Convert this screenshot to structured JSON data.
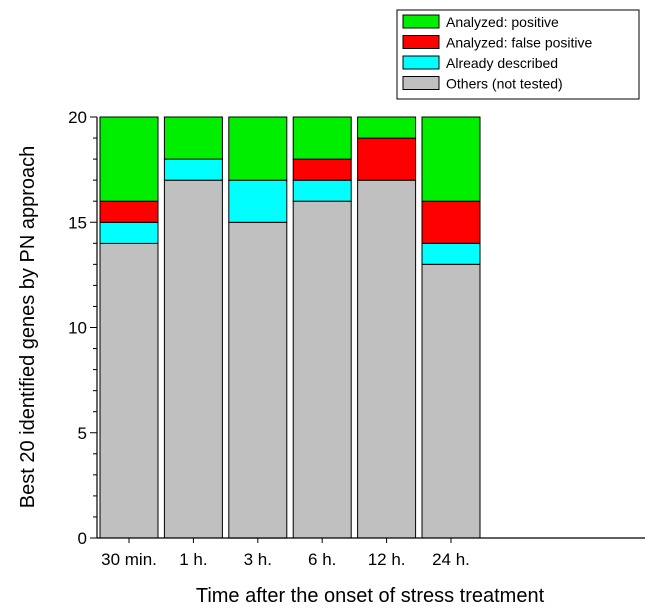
{
  "chart_data": {
    "type": "bar",
    "stacked": true,
    "categories": [
      "30 min.",
      "1 h.",
      "3 h.",
      "6 h.",
      "12 h.",
      "24 h."
    ],
    "series": [
      {
        "name": "Others (not tested)",
        "color": "#c0c0c0",
        "values": [
          14,
          17,
          15,
          16,
          17,
          13
        ]
      },
      {
        "name": "Already described",
        "color": "#00ffff",
        "values": [
          1,
          1,
          2,
          1,
          0,
          1
        ]
      },
      {
        "name": "Analyzed: false positive",
        "color": "#ff0000",
        "values": [
          1,
          0,
          0,
          1,
          2,
          2
        ]
      },
      {
        "name": "Analyzed: positive",
        "color": "#00ee00",
        "values": [
          4,
          2,
          3,
          2,
          1,
          4
        ]
      }
    ],
    "legend_order": [
      "Analyzed: positive",
      "Analyzed: false positive",
      "Already described",
      "Others (not tested)"
    ],
    "legend_position": "top-right",
    "xlabel": "Time after the onset of stress treatment",
    "ylabel": "Best 20 identified genes by PN approach",
    "ylim": [
      0,
      20
    ],
    "yticks": [
      0,
      5,
      10,
      15,
      20
    ],
    "grid": false
  }
}
